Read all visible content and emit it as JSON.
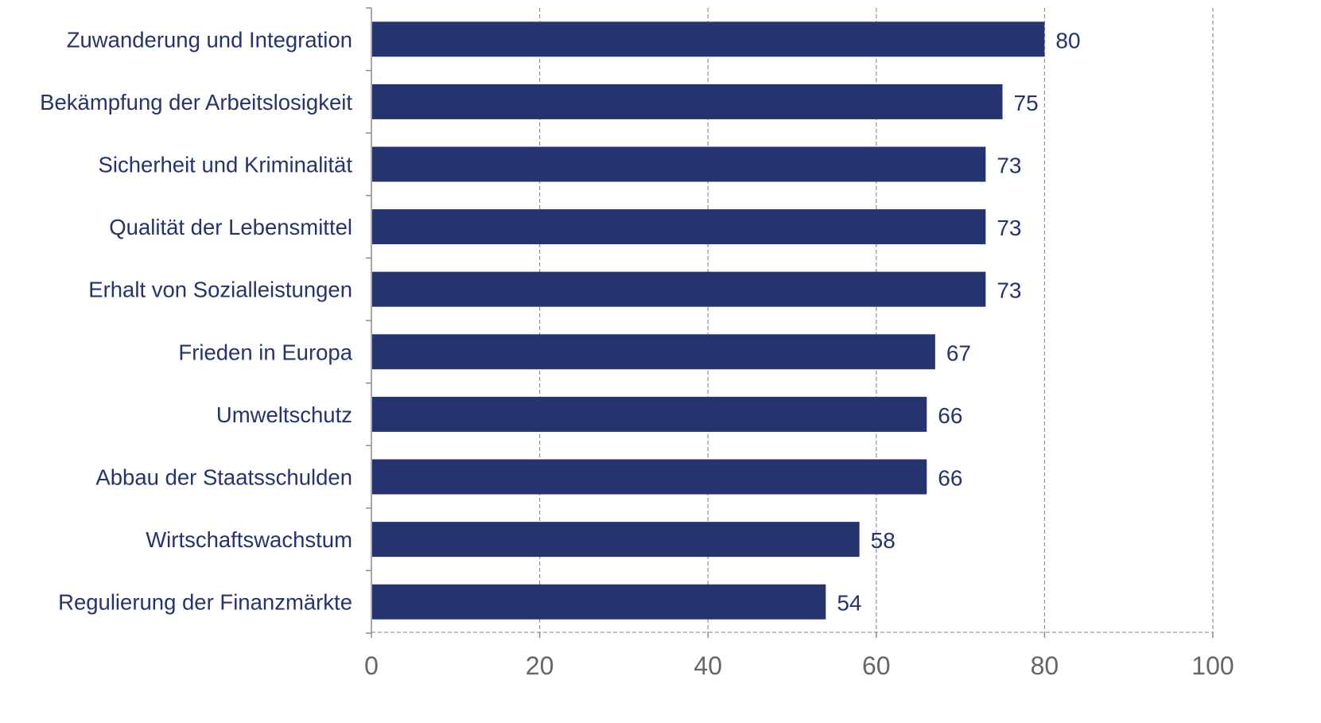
{
  "chart_data": {
    "type": "bar",
    "orientation": "horizontal",
    "categories": [
      "Zuwanderung und Integration",
      "Bekämpfung der Arbeitslosigkeit",
      "Sicherheit und Kriminalität",
      "Qualität der Lebensmittel",
      "Erhalt von Sozialleistungen",
      "Frieden in Europa",
      "Umweltschutz",
      "Abbau der Staatsschulden",
      "Wirtschaftswachstum",
      "Regulierung der Finanzmärkte"
    ],
    "values": [
      80,
      75,
      73,
      73,
      73,
      67,
      66,
      66,
      58,
      54
    ],
    "value_labels": [
      "80",
      "75",
      "73",
      "73",
      "73",
      "67",
      "66",
      "66",
      "58",
      "54"
    ],
    "xlim": [
      0,
      100
    ],
    "xticks": [
      0,
      20,
      40,
      60,
      80,
      100
    ],
    "xtick_labels": [
      "0",
      "20",
      "40",
      "60",
      "80",
      "100"
    ],
    "title": "",
    "xlabel": "",
    "ylabel": "",
    "grid": "vertical dashed",
    "legend": "none",
    "colors": {
      "bar": "#25336E",
      "label_text": "#25336E",
      "tick_text": "#666666",
      "grid": "#9a9a9a",
      "axis": "#8c8c8c"
    }
  }
}
